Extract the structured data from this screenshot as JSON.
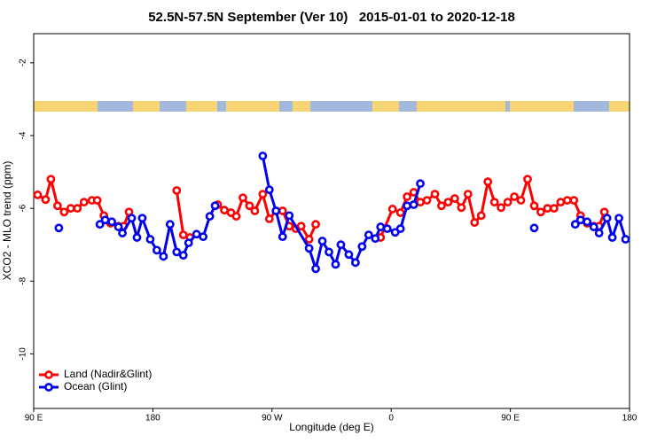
{
  "chart_data": {
    "type": "line",
    "title": "52.5N-57.5N September (Ver 10)   2015-01-01 to 2020-12-18",
    "x_label": "Longitude (deg E)",
    "y_label": "XCO2 - MLO trend (ppm)",
    "xlim": [
      90,
      540
    ],
    "ylim": [
      -11.5,
      -1.2
    ],
    "xticks": [
      {
        "value": 90,
        "label": "90 E"
      },
      180,
      {
        "value": 270,
        "label": "90 W"
      },
      {
        "value": 360,
        "label": "0"
      },
      {
        "value": 450,
        "label": "90 E"
      },
      {
        "value": 540,
        "label": "180"
      }
    ],
    "yticks": [
      -2,
      -4,
      -6,
      -8,
      -10
    ],
    "legend": "bottom-left",
    "series": [
      {
        "name": "Land (Nadir&Glint)",
        "color": "#ff0000",
        "x": [
          93,
          99,
          103,
          108,
          113,
          118,
          123,
          128,
          134,
          138,
          143,
          148,
          154,
          158,
          162,
          null,
          198,
          203,
          208,
          null,
          229,
          234,
          239,
          243,
          248,
          253,
          257,
          263,
          268,
          273,
          278,
          283,
          288,
          292,
          298,
          303,
          null,
          352,
          361,
          367,
          372,
          377,
          382,
          387,
          393,
          398,
          403,
          408,
          413,
          418,
          423,
          428,
          433,
          438,
          443,
          448,
          453,
          458,
          463,
          468,
          473,
          478,
          483,
          488,
          493,
          498,
          503,
          508,
          513,
          517,
          521
        ],
        "values": [
          -5.63,
          -5.76,
          -5.2,
          -5.93,
          -6.1,
          -6.0,
          -6.0,
          -5.83,
          -5.78,
          -5.78,
          -6.2,
          -6.41,
          -6.49,
          -6.49,
          -6.1,
          null,
          -5.51,
          -6.73,
          -6.8,
          null,
          -5.9,
          -6.05,
          -6.12,
          -6.22,
          -5.71,
          -5.93,
          -6.07,
          -5.61,
          -6.29,
          -6.07,
          -6.07,
          -6.49,
          -6.56,
          -6.49,
          -6.85,
          -6.44,
          null,
          -6.8,
          -6.02,
          -6.12,
          -5.68,
          -5.56,
          -5.83,
          -5.78,
          -5.61,
          -5.93,
          -5.83,
          -5.73,
          -5.98,
          -5.61,
          -6.39,
          -6.2,
          -5.27,
          -5.83,
          -5.98,
          -5.83,
          -5.68,
          -5.78,
          -5.2,
          -5.93,
          -6.1,
          -6.0,
          -6.0,
          -5.83,
          -5.78,
          -5.78,
          -6.2,
          -6.41,
          -6.49,
          -6.49,
          -6.1
        ]
      },
      {
        "name": "Ocean (Glint)",
        "color": "#0000ee",
        "x": [
          109,
          null,
          140,
          144,
          149,
          154,
          157,
          164,
          168,
          172,
          178,
          183,
          188,
          193,
          198,
          203,
          207,
          213,
          218,
          223,
          227,
          null,
          263,
          268,
          273,
          278,
          283,
          298,
          303,
          308,
          313,
          318,
          322,
          328,
          333,
          338,
          343,
          348,
          352,
          357,
          363,
          367,
          372,
          377,
          382,
          null,
          468,
          null,
          499,
          503,
          508,
          513,
          517,
          523,
          527,
          532,
          537
        ],
        "values": [
          -6.54,
          null,
          -6.44,
          -6.32,
          -6.37,
          -6.51,
          -6.68,
          -6.27,
          -6.8,
          -6.27,
          -6.85,
          -7.15,
          -7.32,
          -6.44,
          -7.2,
          -7.29,
          -6.95,
          -6.71,
          -6.78,
          -6.22,
          -5.93,
          null,
          -4.56,
          -5.49,
          -6.07,
          -6.78,
          -6.2,
          -7.1,
          -7.66,
          -6.9,
          -7.2,
          -7.54,
          -7.0,
          -7.27,
          -7.49,
          -7.05,
          -6.73,
          -6.83,
          -6.51,
          -6.56,
          -6.66,
          -6.56,
          -5.93,
          -5.9,
          -5.32,
          null,
          -6.54,
          null,
          -6.44,
          -6.32,
          -6.37,
          -6.51,
          -6.68,
          -6.27,
          -6.8,
          -6.27,
          -6.85
        ]
      }
    ]
  }
}
